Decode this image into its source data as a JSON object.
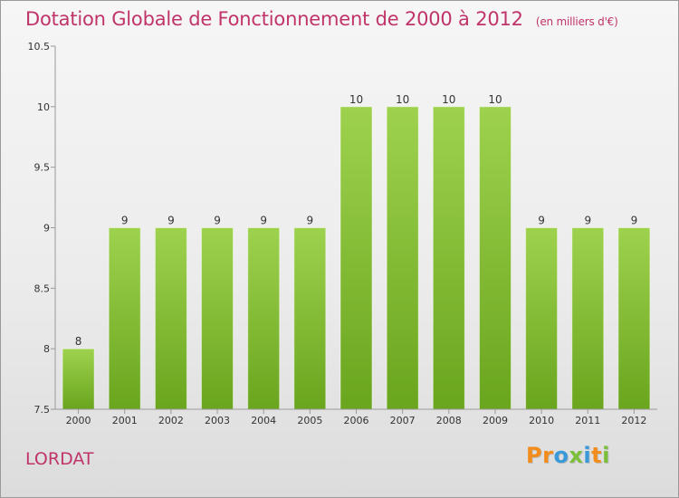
{
  "title": {
    "main": "Dotation Globale de Fonctionnement de 2000 à 2012",
    "unit": "(en milliers d'€)"
  },
  "commune": "LORDAT",
  "logo": {
    "letters": [
      "P",
      "r",
      "o",
      "x",
      "i",
      "t",
      "i"
    ],
    "colors": [
      "#f28c1a",
      "#f28c1a",
      "#3a9ad9",
      "#7cbf3a",
      "#3a9ad9",
      "#f28c1a",
      "#7cbf3a"
    ]
  },
  "chart_data": {
    "type": "bar",
    "categories": [
      "2000",
      "2001",
      "2002",
      "2003",
      "2004",
      "2005",
      "2006",
      "2007",
      "2008",
      "2009",
      "2010",
      "2011",
      "2012"
    ],
    "values": [
      8,
      9,
      9,
      9,
      9,
      9,
      10,
      10,
      10,
      10,
      9,
      9,
      9
    ],
    "value_labels": [
      "8",
      "9",
      "9",
      "9",
      "9",
      "9",
      "10",
      "10",
      "10",
      "10",
      "9",
      "9",
      "9"
    ],
    "ylim": [
      7.5,
      10.5
    ],
    "yticks": [
      7.5,
      8,
      8.5,
      9,
      9.5,
      10,
      10.5
    ],
    "ytick_labels": [
      "7.5",
      "8",
      "8.5",
      "9",
      "9.5",
      "10",
      "10.5"
    ],
    "grid": false,
    "colors": {
      "bar_light": "#9ed24e",
      "bar_dark": "#6aa51e",
      "axis": "#999999"
    }
  }
}
